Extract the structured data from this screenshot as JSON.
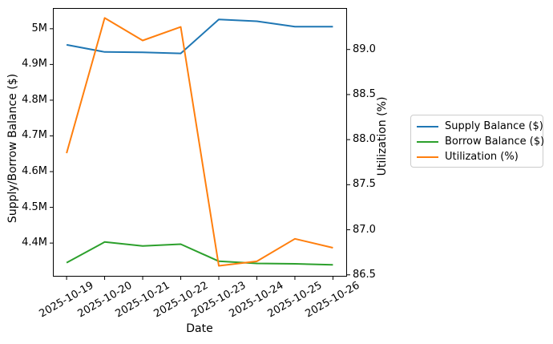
{
  "chart_data": {
    "type": "line",
    "title": "",
    "xlabel": "Date",
    "ylabel_left": "Supply/Borrow Balance ($)",
    "ylabel_right": "Utilization (%)",
    "grid": false,
    "legend_position": "outside-right",
    "categories": [
      "2025-10-19",
      "2025-10-20",
      "2025-10-21",
      "2025-10-22",
      "2025-10-23",
      "2025-10-24",
      "2025-10-25",
      "2025-10-26"
    ],
    "series": [
      {
        "key": "supply-balance",
        "name": "Supply Balance ($)",
        "axis": "left",
        "color": "#1f77b4",
        "values": [
          4955000,
          4935000,
          4934000,
          4931000,
          5026000,
          5021000,
          5006000,
          5006000
        ]
      },
      {
        "key": "borrow-balance",
        "name": "Borrow Balance ($)",
        "axis": "left",
        "color": "#2ca02c",
        "values": [
          4345000,
          4403000,
          4392000,
          4397000,
          4349000,
          4343000,
          4342000,
          4339000
        ]
      },
      {
        "key": "utilization",
        "name": "Utilization (%)",
        "axis": "right",
        "color": "#ff7f0e",
        "values": [
          87.85,
          89.35,
          89.1,
          89.25,
          86.6,
          86.65,
          86.9,
          86.8
        ]
      }
    ],
    "axes": {
      "x": {
        "lim": [
          -0.36,
          7.37
        ]
      },
      "left": {
        "lim": [
          4306000,
          5058000
        ],
        "tick_values": [
          5000000,
          4900000,
          4800000,
          4700000,
          4600000,
          4500000,
          4400000
        ],
        "tick_labels": [
          "5M",
          "4.9M",
          "4.8M",
          "4.7M",
          "4.6M",
          "4.5M",
          "4.4M"
        ]
      },
      "right": {
        "lim": [
          86.48,
          89.46
        ],
        "tick_values": [
          89.0,
          88.5,
          88.0,
          87.5,
          87.0,
          86.5
        ],
        "tick_labels": [
          "89.0",
          "88.5",
          "88.0",
          "87.5",
          "87.0",
          "86.5"
        ]
      }
    }
  }
}
